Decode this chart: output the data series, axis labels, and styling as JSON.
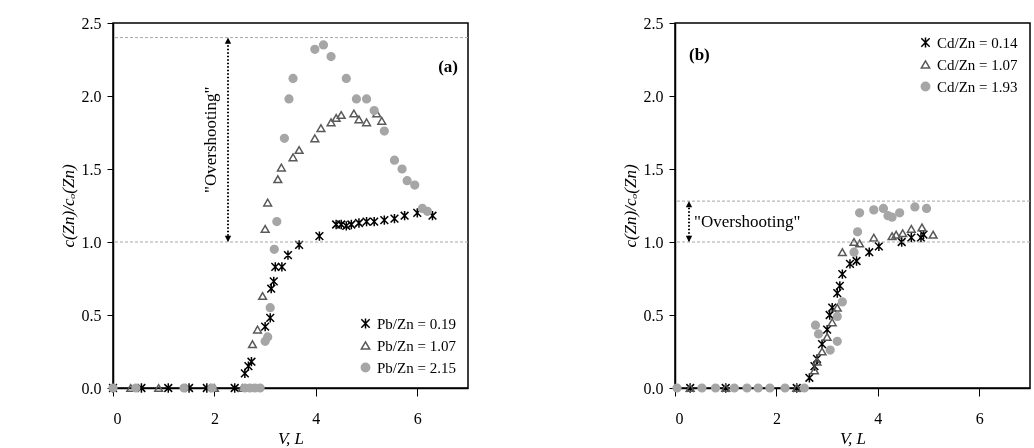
{
  "chart_data": [
    {
      "type": "scatter",
      "xlabel": "V, L",
      "ylabel": "c(Zn)/cₒ(Zn)",
      "annotations": [
        "(a)",
        "\"Overshooting\""
      ],
      "xlim": [
        0,
        7
      ],
      "xticks": [
        0,
        2,
        4,
        6
      ],
      "ylim": [
        0,
        2.5
      ],
      "yticks": [
        {
          "value": 0,
          "label": "0.0"
        },
        {
          "value": 0.5,
          "label": "0.5"
        },
        {
          "value": 1,
          "label": "1.0"
        },
        {
          "value": 1.5,
          "label": "1.5"
        },
        {
          "value": 2,
          "label": "2.0"
        },
        {
          "value": 2.5,
          "label": "2.5"
        }
      ],
      "grid": false,
      "legend": "bottom right",
      "ref_lines": [
        {
          "axis": "y",
          "value": 2.4,
          "color": "#a6a6a6",
          "line_style": "dashed"
        },
        {
          "axis": "y",
          "value": 1.0,
          "color": "#a6a6a6",
          "line_style": "dashed"
        }
      ],
      "series": [
        {
          "name": "Pb/Zn = 0.19",
          "color": "#000000",
          "marker": "cross",
          "x": [
            0,
            0.56,
            1.09,
            1.5,
            1.85,
            2.4,
            2.6,
            2.67,
            2.73,
            3.0,
            3.1,
            3.12,
            3.17,
            3.2,
            3.33,
            3.45,
            3.67,
            4.07,
            4.4,
            4.5,
            4.6,
            4.7,
            4.85,
            5.0,
            5.15,
            5.35,
            5.55,
            5.75,
            6.0,
            6.3
          ],
          "values": [
            0,
            0,
            0,
            0,
            0,
            0,
            0.1,
            0.15,
            0.18,
            0.42,
            0.48,
            0.68,
            0.73,
            0.83,
            0.83,
            0.91,
            0.98,
            1.04,
            1.12,
            1.12,
            1.11,
            1.12,
            1.13,
            1.14,
            1.14,
            1.15,
            1.16,
            1.18,
            1.2,
            1.18
          ]
        },
        {
          "name": "Pb/Zn = 1.07",
          "color": "#595959",
          "marker": "triangle",
          "x": [
            0.35,
            0.9,
            2.0,
            2.55,
            2.75,
            2.85,
            2.95,
            3.0,
            3.05,
            3.25,
            3.32,
            3.55,
            3.67,
            3.98,
            4.1,
            4.3,
            4.4,
            4.5,
            4.75,
            4.85,
            5.0,
            5.2,
            5.3
          ],
          "values": [
            0,
            0,
            0,
            0,
            0.3,
            0.4,
            0.63,
            1.09,
            1.27,
            1.43,
            1.51,
            1.58,
            1.63,
            1.71,
            1.78,
            1.82,
            1.85,
            1.87,
            1.88,
            1.84,
            1.82,
            1.88,
            1.83
          ]
        },
        {
          "name": "Pb/Zn = 2.15",
          "color": "#a6a6a6",
          "marker": "circle",
          "x": [
            0,
            0.45,
            1.4,
            1.95,
            2.6,
            2.7,
            2.8,
            2.9,
            3.0,
            3.05,
            3.1,
            3.18,
            3.23,
            3.38,
            3.47,
            3.55,
            3.98,
            4.15,
            4.3,
            4.6,
            4.8,
            5.0,
            5.15,
            5.35,
            5.55,
            5.7,
            5.8,
            5.95,
            6.1,
            6.2
          ],
          "values": [
            0,
            0,
            0,
            0,
            0,
            0,
            0,
            0,
            0.32,
            0.35,
            0.55,
            0.95,
            1.14,
            1.71,
            1.98,
            2.12,
            2.32,
            2.35,
            2.27,
            2.12,
            1.98,
            1.98,
            1.9,
            1.76,
            1.56,
            1.5,
            1.42,
            1.39,
            1.23,
            1.21
          ]
        }
      ]
    },
    {
      "type": "scatter",
      "xlabel": "V, L",
      "ylabel": "c(Zn)/cₒ(Zn)",
      "annotations": [
        "(b)",
        "\"Overshooting\""
      ],
      "xlim": [
        0,
        7
      ],
      "xticks": [
        0,
        2,
        4,
        6
      ],
      "ylim": [
        0,
        2.5
      ],
      "yticks": [
        {
          "value": 0,
          "label": "0.0"
        },
        {
          "value": 0.5,
          "label": "0.5"
        },
        {
          "value": 1,
          "label": "1.0"
        },
        {
          "value": 1.5,
          "label": "1.5"
        },
        {
          "value": 2,
          "label": "2.0"
        },
        {
          "value": 2.5,
          "label": "2.5"
        }
      ],
      "grid": false,
      "legend": "top right",
      "ref_lines": [
        {
          "axis": "y",
          "value": 1.28,
          "color": "#a6a6a6",
          "line_style": "dashed"
        },
        {
          "axis": "y",
          "value": 1.0,
          "color": "#a6a6a6",
          "line_style": "dashed"
        }
      ],
      "series": [
        {
          "name": "Cd/Zn = 0.14",
          "color": "#000000",
          "marker": "cross",
          "x": [
            0.3,
            1.0,
            2.4,
            2.65,
            2.75,
            2.8,
            2.9,
            3.0,
            3.05,
            3.1,
            3.2,
            3.25,
            3.3,
            3.45,
            3.58,
            3.83,
            4.02,
            4.47,
            4.66,
            4.85,
            4.9
          ],
          "values": [
            0,
            0,
            0,
            0.07,
            0.15,
            0.2,
            0.3,
            0.4,
            0.5,
            0.55,
            0.65,
            0.7,
            0.78,
            0.85,
            0.87,
            0.93,
            0.97,
            1.0,
            1.03,
            1.03,
            1.05
          ]
        },
        {
          "name": "Cd/Zn = 1.07",
          "color": "#595959",
          "marker": "triangle",
          "x": [
            0.3,
            1.0,
            2.4,
            2.75,
            2.8,
            2.9,
            3.0,
            3.1,
            3.2,
            3.3,
            3.53,
            3.64,
            3.92,
            4.28,
            4.36,
            4.49,
            4.66,
            4.87,
            5.09
          ],
          "values": [
            0,
            0,
            0,
            0.12,
            0.18,
            0.25,
            0.35,
            0.45,
            0.55,
            0.93,
            1.0,
            0.99,
            1.03,
            1.04,
            1.05,
            1.06,
            1.09,
            1.1,
            1.05
          ]
        },
        {
          "name": "Cd/Zn = 1.93",
          "color": "#a6a6a6",
          "marker": "circle",
          "x": [
            0.04,
            0.53,
            0.8,
            1.17,
            1.42,
            1.64,
            1.87,
            2.17,
            2.55,
            2.77,
            2.83,
            3.06,
            3.2,
            3.2,
            3.3,
            3.53,
            3.6,
            3.64,
            3.92,
            4.11,
            4.2,
            4.28,
            4.43,
            4.73,
            4.96
          ],
          "values": [
            0,
            0,
            0,
            0,
            0,
            0,
            0,
            0,
            0,
            0.43,
            0.37,
            0.26,
            0.32,
            0.49,
            0.59,
            0.93,
            1.07,
            1.2,
            1.22,
            1.23,
            1.18,
            1.17,
            1.2,
            1.24,
            1.23
          ]
        }
      ]
    }
  ]
}
